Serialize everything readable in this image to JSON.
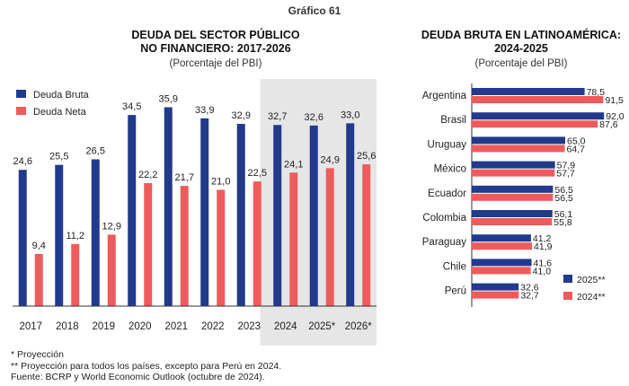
{
  "figure_label": "Gráfico 61",
  "colors": {
    "deuda_bruta": "#223a8c",
    "deuda_neta": "#ee5b5c",
    "shade": "#e6e6e6"
  },
  "chart_data": [
    {
      "type": "bar",
      "title": "DEUDA DEL SECTOR PÚBLICO NO FINANCIERO: 2017-2026",
      "title_lines": [
        "DEUDA DEL SECTOR PÚBLICO",
        "NO FINANCIERO: 2017-2026"
      ],
      "subtitle": "(Porcentaje del PBI)",
      "categories": [
        "2017",
        "2018",
        "2019",
        "2020",
        "2021",
        "2022",
        "2023",
        "2024",
        "2025*",
        "2026*"
      ],
      "series": [
        {
          "name": "Deuda Bruta",
          "values": [
            24.6,
            25.5,
            26.5,
            34.5,
            35.9,
            33.9,
            32.9,
            32.7,
            32.6,
            33.0
          ],
          "labels": [
            "24,6",
            "25,5",
            "26,5",
            "34,5",
            "35,9",
            "33,9",
            "32,9",
            "32,7",
            "32,6",
            "33,0"
          ]
        },
        {
          "name": "Deuda Neta",
          "values": [
            9.4,
            11.2,
            12.9,
            22.2,
            21.7,
            21.0,
            22.5,
            24.1,
            24.9,
            25.6
          ],
          "labels": [
            "9,4",
            "11,2",
            "12,9",
            "22,2",
            "21,7",
            "21,0",
            "22,5",
            "24,1",
            "24,9",
            "25,6"
          ]
        }
      ],
      "ylim": [
        0,
        41
      ],
      "legend": "top-left",
      "shaded_categories": [
        "2024",
        "2025*",
        "2026*"
      ]
    },
    {
      "type": "bar",
      "orientation": "horizontal",
      "title": "DEUDA BRUTA EN LATINOAMÉRICA: 2024-2025",
      "title_lines": [
        "DEUDA BRUTA EN LATINOAMÉRICA:",
        "2024-2025"
      ],
      "subtitle": "(Porcentaje del PBI)",
      "categories": [
        "Argentina",
        "Brasil",
        "Uruguay",
        "México",
        "Ecuador",
        "Colombia",
        "Paraguay",
        "Chile",
        "Perú"
      ],
      "series": [
        {
          "name": "2025**",
          "values": [
            78.5,
            92.0,
            65.0,
            57.9,
            56.5,
            56.1,
            41.2,
            41.6,
            32.6
          ],
          "labels": [
            "78,5",
            "92,0",
            "65,0",
            "57,9",
            "56,5",
            "56,1",
            "41,2",
            "41,6",
            "32,6"
          ]
        },
        {
          "name": "2024**",
          "values": [
            91.5,
            87.6,
            64.7,
            57.7,
            56.5,
            55.8,
            41.9,
            41.0,
            32.7
          ],
          "labels": [
            "91,5",
            "87,6",
            "64,7",
            "57,7",
            "56,5",
            "55,8",
            "41,9",
            "41,0",
            "32,7"
          ]
        }
      ],
      "xlim": [
        0,
        100
      ],
      "legend": "bottom-right"
    }
  ],
  "notes": [
    "* Proyección",
    "** Proyección para todos los países, excepto para Perú en 2024.",
    "Fuente: BCRP y World Economic Outlook (octubre de 2024)."
  ]
}
